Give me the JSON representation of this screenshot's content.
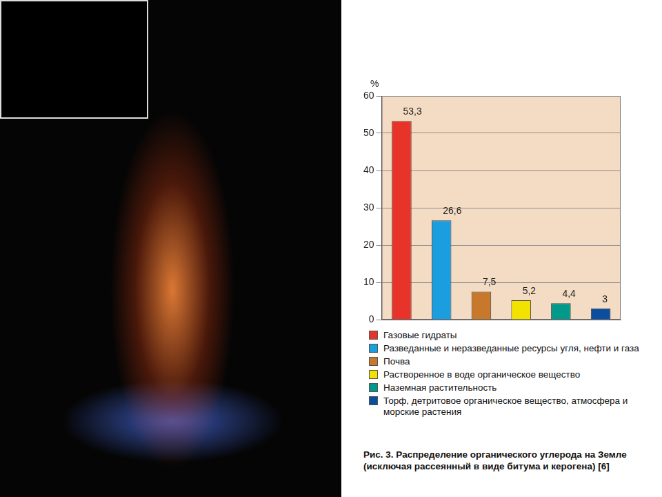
{
  "chart_data": {
    "type": "bar",
    "title": "Рис. 3. Распределение органического углерода на Земле (исключая рассеянный в виде битума и керогена) [6]",
    "ylabel": "%",
    "categories": [
      "Газовые гидраты",
      "Разведанные и неразведанные ресурсы угля, нефти и газа",
      "Почва",
      "Растворенное в воде органическое вещество",
      "Наземная растительность",
      "Торф, детритовое органическое вещество, атмосфера и морские растения"
    ],
    "values": [
      53.3,
      26.6,
      7.5,
      5.2,
      4.4,
      3
    ],
    "value_labels": [
      "53,3",
      "26,6",
      "7,5",
      "5,2",
      "4,4",
      "3"
    ],
    "colors": [
      "#e8332a",
      "#1a9ee0",
      "#c8782a",
      "#f2e200",
      "#00998a",
      "#0b4d9e"
    ],
    "ylim": [
      0,
      60
    ],
    "yticks": [
      0,
      10,
      20,
      30,
      40,
      50,
      60
    ],
    "grid": true,
    "data_labels": true,
    "legend": "bottom",
    "tick_labels": "y"
  }
}
